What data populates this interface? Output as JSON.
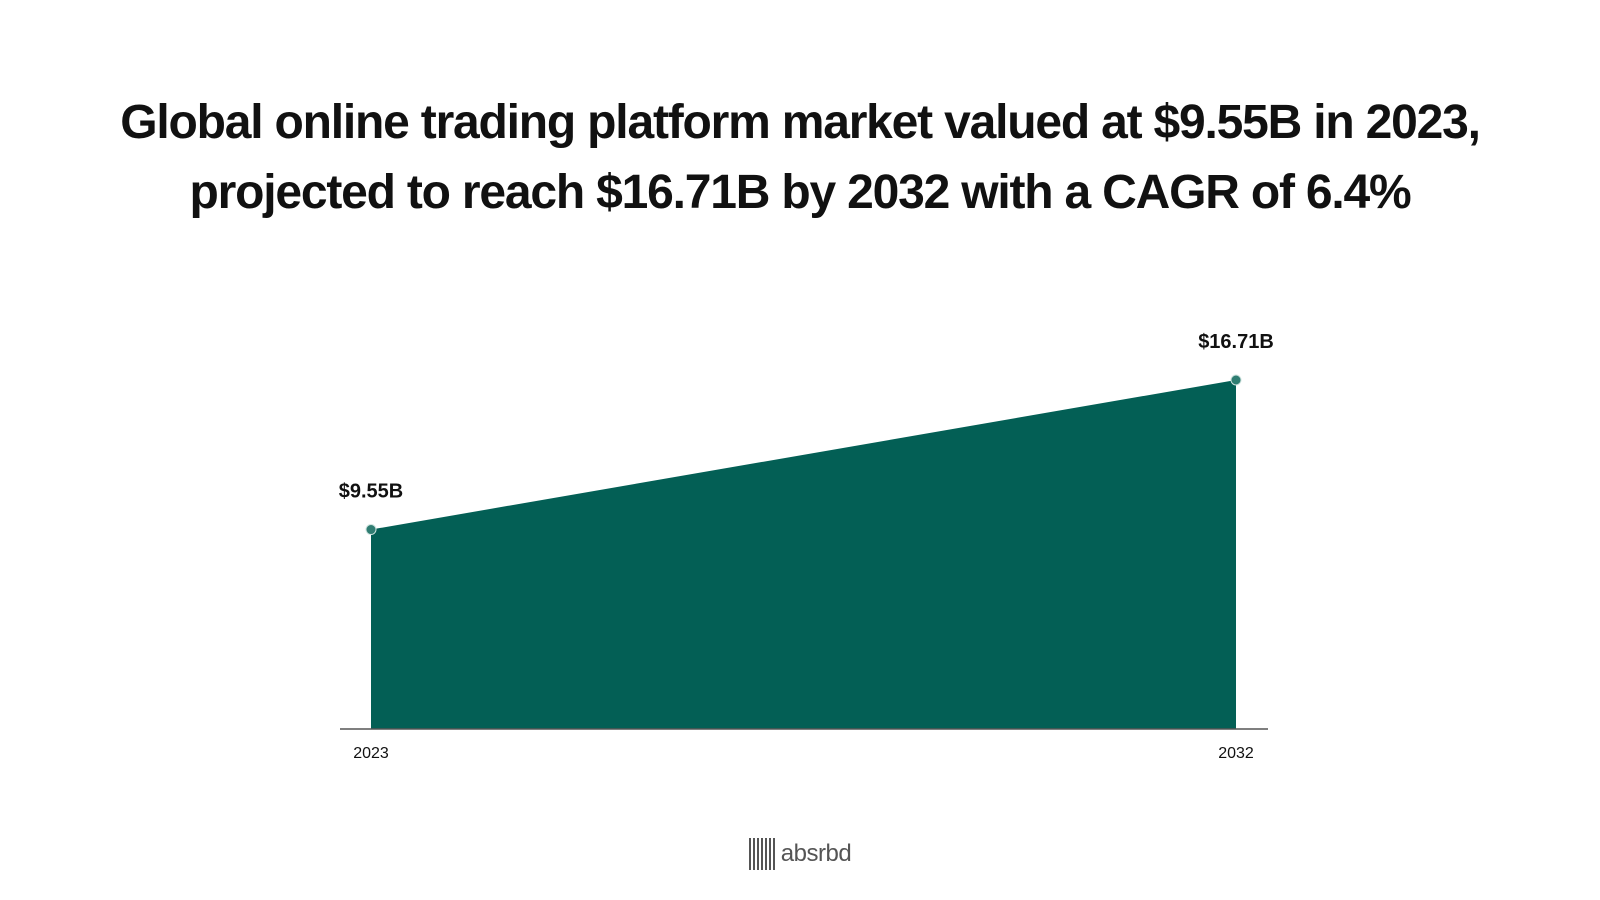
{
  "chart_data": {
    "type": "area",
    "title": "Global online trading platform market valued at $9.55B in 2023, projected to reach $16.71B by 2032 with a CAGR of 6.4%",
    "x": [
      "2023",
      "2032"
    ],
    "values": [
      9.55,
      16.71
    ],
    "data_labels": [
      "$9.55B",
      "$16.71B"
    ],
    "xlabel": "",
    "ylabel": "",
    "ylim": [
      0,
      16.71
    ],
    "grid": false,
    "legend": "none",
    "colors": {
      "fill": "#035f55",
      "marker": "#2f7d72",
      "axis": "#555555"
    }
  },
  "brand": {
    "name": "absrbd",
    "icon": "barcode-logo-icon"
  }
}
